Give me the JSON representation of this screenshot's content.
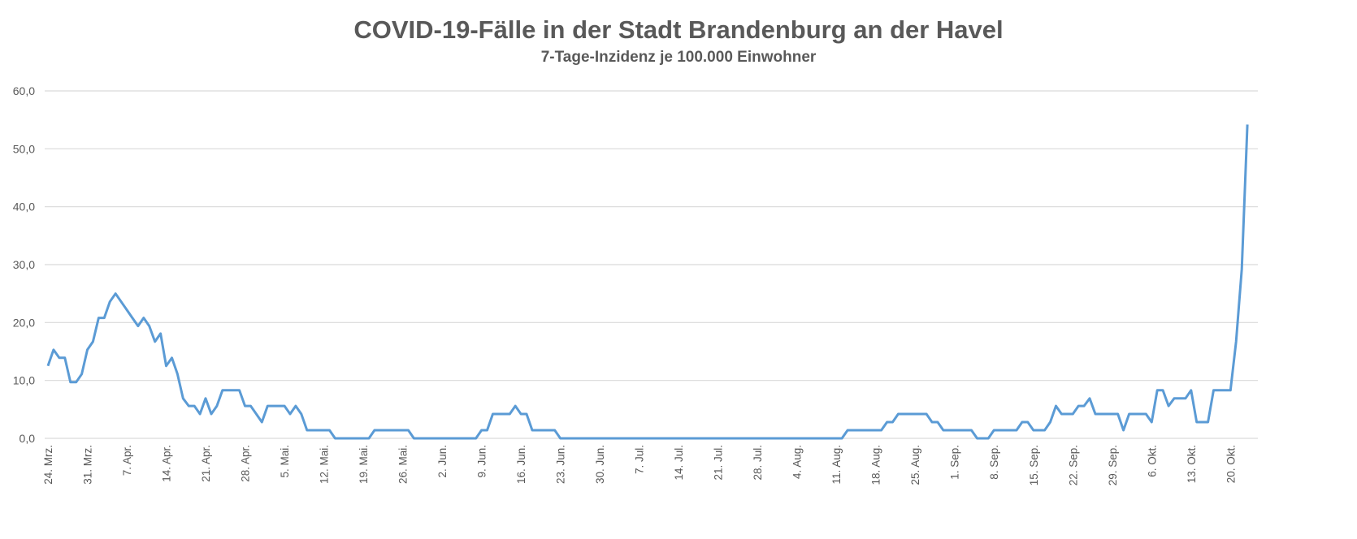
{
  "chart_data": {
    "type": "line",
    "title": "COVID-19-Fälle in der Stadt Brandenburg an der Havel",
    "subtitle": "7-Tage-Inzidenz je 100.000 Einwohner",
    "xlabel": "",
    "ylabel": "",
    "ylim": [
      0,
      60
    ],
    "yticks": [
      "0,0",
      "10,0",
      "20,0",
      "30,0",
      "40,0",
      "50,0",
      "60,0"
    ],
    "ytick_values": [
      0,
      10,
      20,
      30,
      40,
      50,
      60
    ],
    "grid": true,
    "x_start": "24. Mrz.",
    "x_tick_every_days": 7,
    "xticks": [
      "24. Mrz.",
      "31. Mrz.",
      "7. Apr.",
      "14. Apr.",
      "21. Apr.",
      "28. Apr.",
      "5. Mai.",
      "12. Mai.",
      "19. Mai.",
      "26. Mai.",
      "2. Jun.",
      "9. Jun.",
      "16. Jun.",
      "23. Jun.",
      "30. Jun.",
      "7. Jul.",
      "14. Jul.",
      "21. Jul.",
      "28. Jul.",
      "4. Aug.",
      "11. Aug.",
      "18. Aug.",
      "25. Aug.",
      "1. Sep.",
      "8. Sep.",
      "15. Sep.",
      "22. Sep.",
      "29. Sep.",
      "6. Okt.",
      "13. Okt.",
      "20. Okt."
    ],
    "series": [
      {
        "name": "7-Tage-Inzidenz",
        "color": "#5b9bd5",
        "values": [
          12.5,
          15.3,
          13.9,
          13.9,
          9.7,
          9.7,
          11.1,
          15.3,
          16.7,
          20.8,
          20.8,
          23.6,
          25.0,
          23.6,
          22.2,
          20.8,
          19.4,
          20.8,
          19.4,
          16.7,
          18.1,
          12.5,
          13.9,
          11.1,
          6.9,
          5.6,
          5.6,
          4.2,
          6.9,
          4.2,
          5.6,
          8.3,
          8.3,
          8.3,
          8.3,
          5.6,
          5.6,
          4.2,
          2.8,
          5.6,
          5.6,
          5.6,
          5.6,
          4.2,
          5.6,
          4.2,
          1.4,
          1.4,
          1.4,
          1.4,
          1.4,
          0,
          0,
          0,
          0,
          0,
          0,
          0,
          1.4,
          1.4,
          1.4,
          1.4,
          1.4,
          1.4,
          1.4,
          0,
          0,
          0,
          0,
          0,
          0,
          0,
          0,
          0,
          0,
          0,
          0,
          1.4,
          1.4,
          4.2,
          4.2,
          4.2,
          4.2,
          5.6,
          4.2,
          4.2,
          1.4,
          1.4,
          1.4,
          1.4,
          1.4,
          0,
          0,
          0,
          0,
          0,
          0,
          0,
          0,
          0,
          0,
          0,
          0,
          0,
          0,
          0,
          0,
          0,
          0,
          0,
          0,
          0,
          0,
          0,
          0,
          0,
          0,
          0,
          0,
          0,
          0,
          0,
          0,
          0,
          0,
          0,
          0,
          0,
          0,
          0,
          0,
          0,
          0,
          0,
          0,
          0,
          0,
          0,
          0,
          0,
          0,
          0,
          1.4,
          1.4,
          1.4,
          1.4,
          1.4,
          1.4,
          1.4,
          2.8,
          2.8,
          4.2,
          4.2,
          4.2,
          4.2,
          4.2,
          4.2,
          2.8,
          2.8,
          1.4,
          1.4,
          1.4,
          1.4,
          1.4,
          1.4,
          0,
          0,
          0,
          1.4,
          1.4,
          1.4,
          1.4,
          1.4,
          2.8,
          2.8,
          1.4,
          1.4,
          1.4,
          2.8,
          5.6,
          4.2,
          4.2,
          4.2,
          5.6,
          5.6,
          6.9,
          4.2,
          4.2,
          4.2,
          4.2,
          4.2,
          1.4,
          4.2,
          4.2,
          4.2,
          4.2,
          2.8,
          8.3,
          8.3,
          5.6,
          6.9,
          6.9,
          6.9,
          8.3,
          2.8,
          2.8,
          2.8,
          8.3,
          8.3,
          8.3,
          8.3,
          16.7,
          29.2,
          54.2
        ]
      }
    ]
  }
}
